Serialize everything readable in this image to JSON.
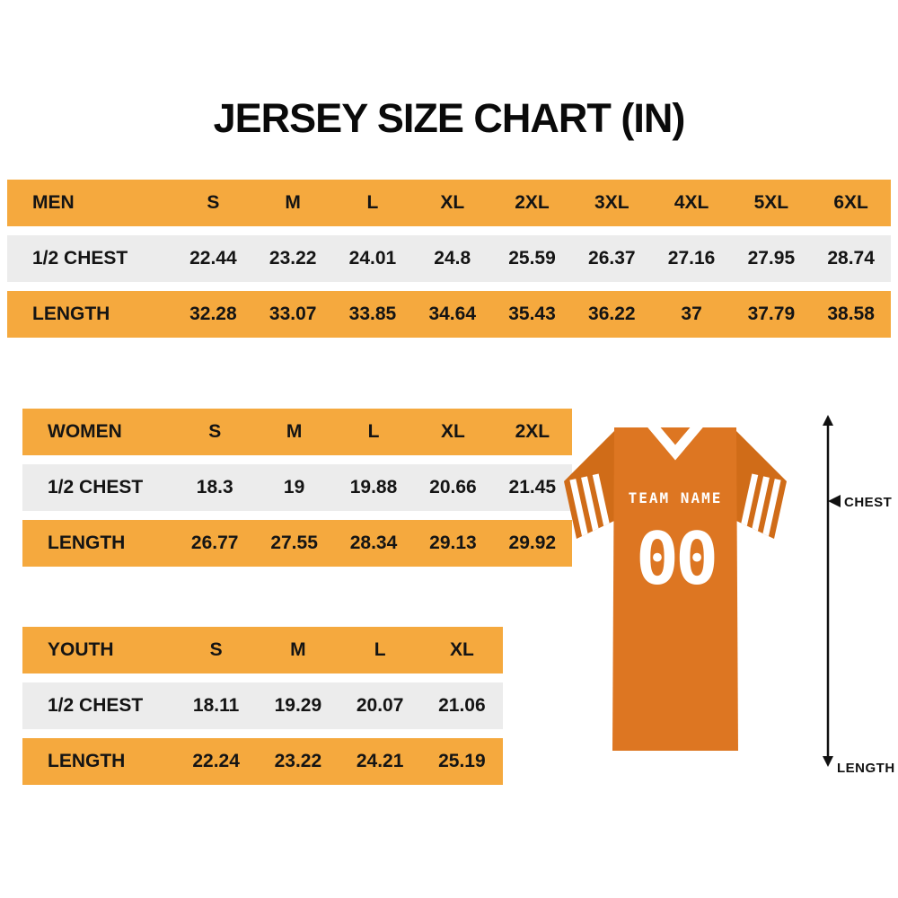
{
  "page": {
    "title": "JERSEY SIZE CHART (IN)"
  },
  "tables": {
    "men": {
      "header": [
        "MEN",
        "S",
        "M",
        "L",
        "XL",
        "2XL",
        "3XL",
        "4XL",
        "5XL",
        "6XL"
      ],
      "rows": [
        {
          "label": "1/2 CHEST",
          "values": [
            "22.44",
            "23.22",
            "24.01",
            "24.8",
            "25.59",
            "26.37",
            "27.16",
            "27.95",
            "28.74"
          ]
        },
        {
          "label": "LENGTH",
          "values": [
            "32.28",
            "33.07",
            "33.85",
            "34.64",
            "35.43",
            "36.22",
            "37",
            "37.79",
            "38.58"
          ]
        }
      ]
    },
    "women": {
      "header": [
        "WOMEN",
        "S",
        "M",
        "L",
        "XL",
        "2XL"
      ],
      "rows": [
        {
          "label": "1/2 CHEST",
          "values": [
            "18.3",
            "19",
            "19.88",
            "20.66",
            "21.45"
          ]
        },
        {
          "label": "LENGTH",
          "values": [
            "26.77",
            "27.55",
            "28.34",
            "29.13",
            "29.92"
          ]
        }
      ]
    },
    "youth": {
      "header": [
        "YOUTH",
        "S",
        "M",
        "L",
        "XL"
      ],
      "rows": [
        {
          "label": "1/2 CHEST",
          "values": [
            "18.11",
            "19.29",
            "20.07",
            "21.06"
          ]
        },
        {
          "label": "LENGTH",
          "values": [
            "22.24",
            "23.22",
            "24.21",
            "25.19"
          ]
        }
      ]
    }
  },
  "jersey": {
    "team_name": "TEAM NAME",
    "number": "00",
    "chest_label": "CHEST",
    "length_label": "LENGTH"
  },
  "colors": {
    "header_orange": "#F5A93E",
    "row_gray": "#ECECEC",
    "jersey_body": "#DD7622",
    "jersey_sleeve": "#D06C18",
    "stripe_white": "#FFFFFF",
    "text_black": "#141414"
  }
}
